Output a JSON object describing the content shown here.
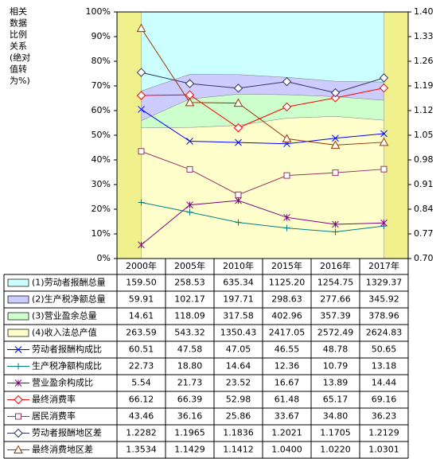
{
  "chart_data": {
    "type": "area_line_table",
    "ylabel": [
      "相关",
      "数据",
      "比例",
      "关系",
      "(绝对",
      "值转",
      "为%)"
    ],
    "categories": [
      "2000年",
      "2005年",
      "2010年",
      "2015年",
      "2016年",
      "2017年"
    ],
    "stacked": "percent",
    "ylim": [
      0,
      100
    ],
    "yticks": [
      {
        "value": 0,
        "label": "0%"
      },
      {
        "value": 10,
        "label": "10%"
      },
      {
        "value": 20,
        "label": "20%"
      },
      {
        "value": 30,
        "label": "30%"
      },
      {
        "value": 40,
        "label": "40%"
      },
      {
        "value": 50,
        "label": "50%"
      },
      {
        "value": 60,
        "label": "60%"
      },
      {
        "value": 70,
        "label": "70%"
      },
      {
        "value": 80,
        "label": "80%"
      },
      {
        "value": 90,
        "label": "90%"
      },
      {
        "value": 100,
        "label": "100%"
      }
    ],
    "y2lim": [
      0.7,
      1.4
    ],
    "y2ticks": [
      {
        "value": 0.7,
        "label": "0.70"
      },
      0.77,
      0.84,
      0.91,
      0.98,
      1.05,
      1.12,
      1.19,
      1.26,
      1.33,
      {
        "value": 1.4,
        "label": "1.40"
      }
    ],
    "series": [
      {
        "name": "(1)劳动者报酬总量",
        "kind": "area",
        "color": "#ccffff",
        "values": [
          159.5,
          258.53,
          635.34,
          1125.2,
          1254.75,
          1329.37
        ],
        "value_labels": [
          "159.50",
          "258.53",
          "635.34",
          "1125.20",
          "1254.75",
          "1329.37"
        ]
      },
      {
        "name": "(2)生产税净额总量",
        "kind": "area",
        "color": "#ccccff",
        "values": [
          59.91,
          102.17,
          197.71,
          298.63,
          277.66,
          345.92
        ],
        "value_labels": [
          "59.91",
          "102.17",
          "197.71",
          "298.63",
          "277.66",
          "345.92"
        ]
      },
      {
        "name": "(3)营业盈余总量",
        "kind": "area",
        "color": "#ccffcc",
        "values": [
          14.61,
          118.09,
          317.58,
          402.96,
          357.39,
          378.96
        ],
        "value_labels": [
          "14.61",
          "118.09",
          "317.58",
          "402.96",
          "357.39",
          "378.96"
        ]
      },
      {
        "name": "(4)收入法总产值",
        "kind": "area",
        "color": "#ffffcc",
        "values": [
          263.59,
          543.32,
          1350.43,
          2417.05,
          2572.49,
          2624.83
        ],
        "value_labels": [
          "263.59",
          "543.32",
          "1350.43",
          "2417.05",
          "2572.49",
          "2624.83"
        ]
      },
      {
        "name": "劳动者报酬构成比",
        "kind": "line",
        "marker": "x",
        "color": "#0000ff",
        "values": [
          60.51,
          47.58,
          47.05,
          46.55,
          48.78,
          50.65
        ],
        "value_labels": [
          "60.51",
          "47.58",
          "47.05",
          "46.55",
          "48.78",
          "50.65"
        ]
      },
      {
        "name": "生产税净额构成比",
        "kind": "line",
        "marker": "plus",
        "color": "#008080",
        "values": [
          22.73,
          18.8,
          14.64,
          12.36,
          10.79,
          13.18
        ],
        "value_labels": [
          "22.73",
          "18.80",
          "14.64",
          "12.36",
          "10.79",
          "13.18"
        ]
      },
      {
        "name": "营业盈余构成比",
        "kind": "line",
        "marker": "star",
        "color": "#800080",
        "values": [
          5.54,
          21.73,
          23.52,
          16.67,
          13.89,
          14.44
        ],
        "value_labels": [
          "5.54",
          "21.73",
          "23.52",
          "16.67",
          "13.89",
          "14.44"
        ]
      },
      {
        "name": "最终消费率",
        "kind": "line",
        "marker": "diamond",
        "color": "#ff0000",
        "values": [
          66.12,
          66.39,
          52.98,
          61.48,
          65.17,
          69.16
        ],
        "value_labels": [
          "66.12",
          "66.39",
          "52.98",
          "61.48",
          "65.17",
          "69.16"
        ]
      },
      {
        "name": "居民消费率",
        "kind": "line",
        "marker": "square",
        "color": "#993366",
        "values": [
          43.46,
          36.16,
          25.86,
          33.67,
          34.8,
          36.23
        ],
        "value_labels": [
          "43.46",
          "36.16",
          "25.86",
          "33.67",
          "34.80",
          "36.23"
        ]
      },
      {
        "name": "劳动者报酬地区差",
        "kind": "line",
        "marker": "diamond",
        "axis": "y2",
        "color": "#333366",
        "values": [
          1.2282,
          1.1965,
          1.1836,
          1.2021,
          1.1705,
          1.2129
        ],
        "value_labels": [
          "1.2282",
          "1.1965",
          "1.1836",
          "1.2021",
          "1.1705",
          "1.2129"
        ]
      },
      {
        "name": "最终消费地区差",
        "kind": "line",
        "marker": "triangle",
        "axis": "y2",
        "color": "#993300",
        "values": [
          1.3534,
          1.1429,
          1.1412,
          1.04,
          1.022,
          1.0301
        ],
        "value_labels": [
          "1.3534",
          "1.1429",
          "1.1412",
          "1.0400",
          "1.0220",
          "1.0301"
        ]
      }
    ]
  }
}
